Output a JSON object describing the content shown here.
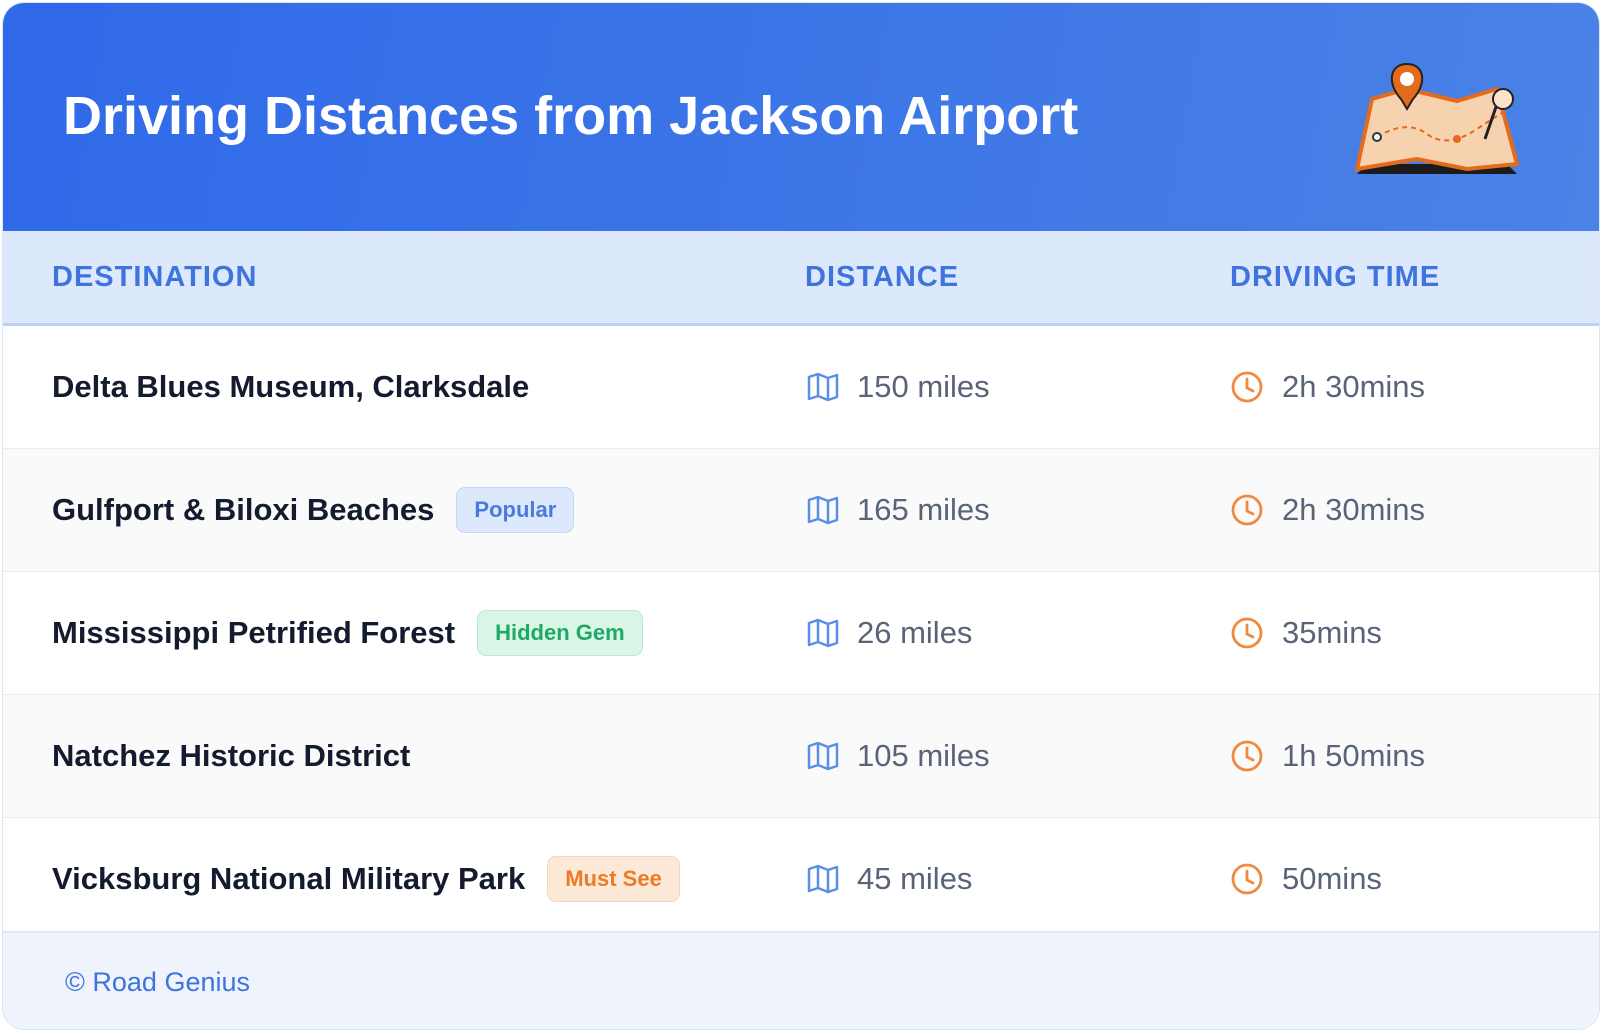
{
  "header": {
    "title": "Driving Distances from Jackson Airport"
  },
  "table": {
    "columns": [
      "DESTINATION",
      "DISTANCE",
      "DRIVING TIME"
    ],
    "rows": [
      {
        "destination": "Delta Blues Museum, Clarksdale",
        "distance": "150 miles",
        "time": "2h 30mins"
      },
      {
        "destination": "Gulfport & Biloxi Beaches",
        "badge": "Popular",
        "distance": "165 miles",
        "time": "2h 30mins"
      },
      {
        "destination": "Mississippi Petrified Forest",
        "badge": "Hidden Gem",
        "distance": "26 miles",
        "time": "35mins"
      },
      {
        "destination": "Natchez Historic District",
        "distance": "105 miles",
        "time": "1h 50mins"
      },
      {
        "destination": "Vicksburg National Military Park",
        "badge": "Must See",
        "distance": "45 miles",
        "time": "50mins"
      }
    ]
  },
  "footer": {
    "text": "© Road Genius"
  }
}
